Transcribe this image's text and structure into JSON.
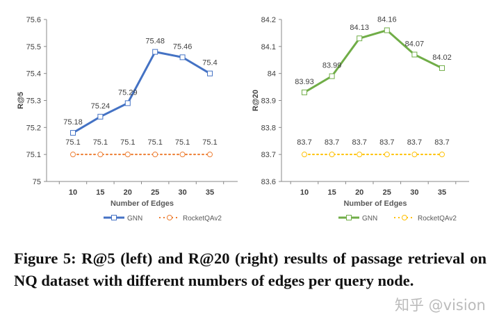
{
  "chart_data": [
    {
      "type": "line",
      "xlabel": "Number of Edges",
      "ylabel": "R@5",
      "categories": [
        10,
        15,
        20,
        25,
        30,
        35
      ],
      "ylim": [
        75,
        75.6
      ],
      "yticks": [
        "75",
        "75.1",
        "75.2",
        "75.3",
        "75.4",
        "75.5",
        "75.6"
      ],
      "grid": false,
      "legend_position": "bottom",
      "series": [
        {
          "name": "GNN",
          "values": [
            75.18,
            75.24,
            75.29,
            75.48,
            75.46,
            75.4
          ],
          "labels": [
            "75.18",
            "75.24",
            "75.29",
            "75.48",
            "75.46",
            "75.4"
          ],
          "color": "#4472C4",
          "marker": "square",
          "style": "solid"
        },
        {
          "name": "RocketQAv2",
          "values": [
            75.1,
            75.1,
            75.1,
            75.1,
            75.1,
            75.1
          ],
          "labels": [
            "75.1",
            "75.1",
            "75.1",
            "75.1",
            "75.1",
            "75.1"
          ],
          "color": "#ED7D31",
          "marker": "circle",
          "style": "dotted"
        }
      ]
    },
    {
      "type": "line",
      "xlabel": "Number of Edges",
      "ylabel": "R@20",
      "categories": [
        10,
        15,
        20,
        25,
        30,
        35
      ],
      "ylim": [
        83.6,
        84.2
      ],
      "yticks": [
        "83.6",
        "83.7",
        "83.8",
        "83.9",
        "84",
        "84.1",
        "84.2"
      ],
      "grid": false,
      "legend_position": "bottom",
      "series": [
        {
          "name": "GNN",
          "values": [
            83.93,
            83.99,
            84.13,
            84.16,
            84.07,
            84.02
          ],
          "labels": [
            "83.93",
            "83.99",
            "84.13",
            "84.16",
            "84.07",
            "84.02"
          ],
          "color": "#70AD47",
          "marker": "square",
          "style": "solid"
        },
        {
          "name": "RocketQAv2",
          "values": [
            83.7,
            83.7,
            83.7,
            83.7,
            83.7,
            83.7
          ],
          "labels": [
            "83.7",
            "83.7",
            "83.7",
            "83.7",
            "83.7",
            "83.7"
          ],
          "color": "#FFC000",
          "marker": "circle",
          "style": "dotted"
        }
      ]
    }
  ],
  "caption": "Figure 5: R@5 (left) and R@20 (right) results of passage retrieval on NQ dataset with different numbers of edges per query node.",
  "watermark": "知乎 @vision"
}
